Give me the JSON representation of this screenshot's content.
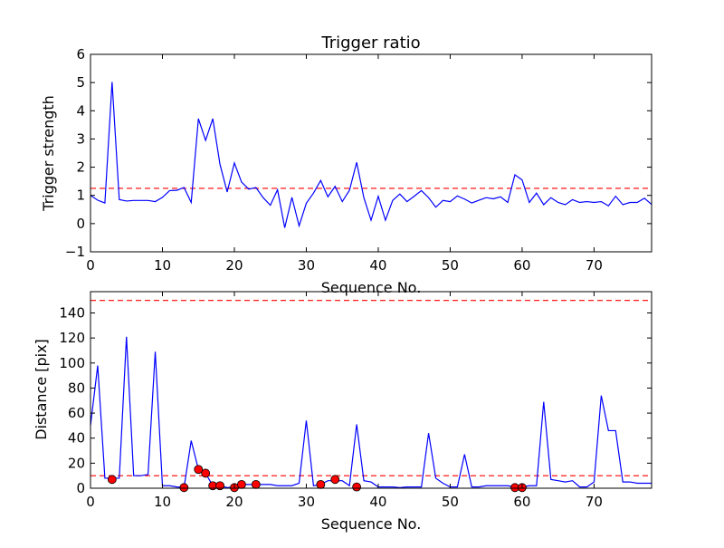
{
  "chart_data": [
    {
      "type": "line",
      "title": "Trigger ratio",
      "xlabel": "Sequence No.",
      "ylabel": "Trigger strength",
      "xlim": [
        0,
        78
      ],
      "ylim": [
        -1,
        6
      ],
      "xticks": [
        0,
        10,
        20,
        30,
        40,
        50,
        60,
        70
      ],
      "xtick_labels": [
        "0",
        "10",
        "20",
        "30",
        "40",
        "50",
        "60",
        "70"
      ],
      "yticks": [
        -1,
        0,
        1,
        2,
        3,
        4,
        5,
        6
      ],
      "ytick_labels": [
        "−1",
        "0",
        "1",
        "2",
        "3",
        "4",
        "5",
        "6"
      ],
      "colors": {
        "line": "#0000ff",
        "threshold": "#ff0000"
      },
      "threshold": 1.25,
      "series": [
        {
          "x": [
            0,
            1,
            2,
            3,
            4,
            5,
            6,
            7,
            8,
            9,
            10,
            11,
            12,
            13,
            14,
            15,
            16,
            17,
            18,
            19,
            20,
            21,
            22,
            23,
            24,
            25,
            26,
            27,
            28,
            29,
            30,
            31,
            32,
            33,
            34,
            35,
            36,
            37,
            38,
            39,
            40,
            41,
            42,
            43,
            44,
            45,
            46,
            47,
            48,
            49,
            50,
            51,
            52,
            53,
            54,
            55,
            56,
            57,
            58,
            59,
            60,
            61,
            62,
            63,
            64,
            65,
            66,
            67,
            68,
            69,
            70,
            71,
            72,
            73,
            74,
            75,
            76,
            77,
            78
          ],
          "values": [
            1.0,
            0.83,
            0.73,
            5.02,
            0.85,
            0.8,
            0.82,
            0.82,
            0.82,
            0.78,
            0.93,
            1.17,
            1.18,
            1.28,
            0.75,
            3.72,
            2.95,
            3.72,
            2.1,
            1.12,
            2.15,
            1.47,
            1.22,
            1.28,
            0.92,
            0.65,
            1.2,
            -0.15,
            0.93,
            -0.08,
            0.72,
            1.08,
            1.53,
            0.95,
            1.32,
            0.78,
            1.18,
            2.17,
            0.92,
            0.12,
            0.97,
            0.12,
            0.82,
            1.05,
            0.78,
            0.97,
            1.17,
            0.92,
            0.58,
            0.82,
            0.78,
            0.98,
            0.87,
            0.73,
            0.83,
            0.92,
            0.88,
            0.95,
            0.75,
            1.73,
            1.55,
            0.75,
            1.08,
            0.67,
            0.92,
            0.75,
            0.67,
            0.85,
            0.75,
            0.78,
            0.75,
            0.78,
            0.63,
            0.97,
            0.67,
            0.75,
            0.75,
            0.9,
            0.68
          ]
        }
      ]
    },
    {
      "type": "line",
      "title": "",
      "xlabel": "Sequence No.",
      "ylabel": "Distance [pix]",
      "xlim": [
        0,
        78
      ],
      "ylim": [
        0,
        157
      ],
      "xticks": [
        0,
        10,
        20,
        30,
        40,
        50,
        60,
        70
      ],
      "xtick_labels": [
        "0",
        "10",
        "20",
        "30",
        "40",
        "50",
        "60",
        "70"
      ],
      "yticks": [
        0,
        20,
        40,
        60,
        80,
        100,
        120,
        140
      ],
      "ytick_labels": [
        "0",
        "20",
        "40",
        "60",
        "80",
        "100",
        "120",
        "140"
      ],
      "colors": {
        "line": "#0000ff",
        "threshold": "#ff0000",
        "markers": "#ff0000"
      },
      "thresholds": [
        10,
        150
      ],
      "series": [
        {
          "x": [
            0,
            1,
            2,
            3,
            4,
            5,
            6,
            7,
            8,
            9,
            10,
            11,
            12,
            13,
            14,
            15,
            16,
            17,
            18,
            19,
            20,
            21,
            22,
            23,
            24,
            25,
            26,
            27,
            28,
            29,
            30,
            31,
            32,
            33,
            34,
            35,
            36,
            37,
            38,
            39,
            40,
            41,
            42,
            43,
            44,
            45,
            46,
            47,
            48,
            49,
            50,
            51,
            52,
            53,
            54,
            55,
            56,
            57,
            58,
            59,
            60,
            61,
            62,
            63,
            64,
            65,
            66,
            67,
            68,
            69,
            70,
            71,
            72,
            73,
            74,
            75,
            76,
            77,
            78
          ],
          "values": [
            50,
            98,
            8,
            8,
            8,
            121,
            10,
            10,
            11,
            109,
            2,
            2,
            1,
            0.5,
            38,
            15,
            12,
            2,
            2,
            0.5,
            1,
            3,
            3,
            3,
            3,
            3,
            2,
            2,
            2,
            4,
            54,
            2,
            3,
            6,
            6,
            6,
            2,
            51,
            6,
            5,
            1,
            1,
            1,
            0.5,
            1,
            1,
            1,
            44,
            8,
            4,
            1,
            1,
            27,
            1,
            1,
            2,
            2,
            2,
            2,
            1,
            1,
            2,
            2,
            69,
            7,
            6,
            5,
            6,
            1,
            1,
            5,
            74,
            46,
            46,
            5,
            5,
            4,
            4,
            4
          ]
        },
        {
          "name": "markers",
          "x": [
            3,
            13,
            15,
            16,
            17,
            18,
            20,
            21,
            23,
            32,
            34,
            37,
            59,
            60
          ],
          "values": [
            7,
            0.5,
            15,
            12,
            2,
            2,
            0.5,
            3,
            3,
            3,
            7,
            1,
            0.5,
            0.5
          ]
        }
      ]
    }
  ]
}
